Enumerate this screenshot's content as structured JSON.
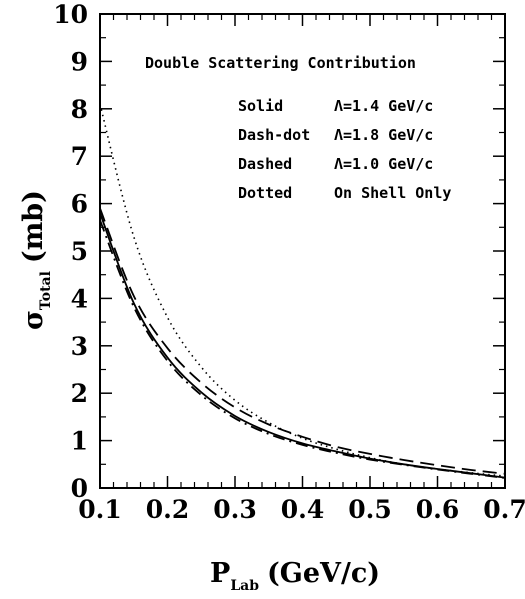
{
  "chart_data": {
    "type": "line",
    "annotation": "Double Scattering Contribution",
    "xlabel": {
      "main": "P",
      "sub": "Lab",
      "unit": "(GeV/c)"
    },
    "ylabel": {
      "main": "σ",
      "sub": "Total",
      "unit": "(mb)"
    },
    "xlim": [
      0.1,
      0.7
    ],
    "ylim": [
      0,
      10
    ],
    "x_ticks": [
      "0.1",
      "0.2",
      "0.3",
      "0.4",
      "0.5",
      "0.6",
      "0.7"
    ],
    "y_ticks": [
      "0",
      "1",
      "2",
      "3",
      "4",
      "5",
      "6",
      "7",
      "8",
      "9",
      "10"
    ],
    "grid": false,
    "legend": [
      {
        "style": "Solid",
        "desc": "Λ=1.4 GeV/c"
      },
      {
        "style": "Dash-dot",
        "desc": "Λ=1.8 GeV/c"
      },
      {
        "style": "Dashed",
        "desc": "Λ=1.0 GeV/c"
      },
      {
        "style": "Dotted",
        "desc": "On Shell Only"
      }
    ],
    "x": [
      0.1,
      0.15,
      0.2,
      0.25,
      0.3,
      0.35,
      0.4,
      0.45,
      0.5,
      0.55,
      0.6,
      0.65,
      0.7
    ],
    "series": [
      {
        "name": "Solid",
        "dash": "solid",
        "values": [
          5.8,
          3.9,
          2.75,
          2.02,
          1.52,
          1.18,
          0.94,
          0.77,
          0.62,
          0.5,
          0.4,
          0.31,
          0.22
        ]
      },
      {
        "name": "Dash-dot",
        "dash": "dashdot",
        "values": [
          5.65,
          3.82,
          2.68,
          1.96,
          1.47,
          1.14,
          0.91,
          0.74,
          0.6,
          0.49,
          0.39,
          0.3,
          0.21
        ]
      },
      {
        "name": "Dashed",
        "dash": "dashed",
        "values": [
          5.9,
          4.05,
          2.95,
          2.22,
          1.7,
          1.34,
          1.08,
          0.87,
          0.72,
          0.59,
          0.48,
          0.38,
          0.3
        ]
      },
      {
        "name": "Dotted",
        "dash": "dotted",
        "values": [
          8.1,
          5.3,
          3.6,
          2.55,
          1.85,
          1.38,
          1.05,
          0.82,
          0.64,
          0.5,
          0.4,
          0.32,
          0.25
        ]
      }
    ]
  }
}
